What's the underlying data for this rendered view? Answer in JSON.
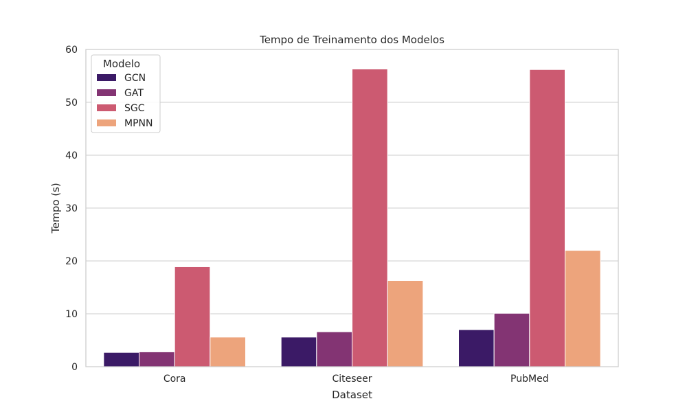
{
  "chart_data": {
    "type": "bar",
    "title": "Tempo de Treinamento dos Modelos",
    "xlabel": "Dataset",
    "ylabel": "Tempo (s)",
    "categories": [
      "Cora",
      "Citeseer",
      "PubMed"
    ],
    "series": [
      {
        "name": "GCN",
        "color": "#3b1a66",
        "values": [
          2.7,
          5.6,
          7.0
        ]
      },
      {
        "name": "GAT",
        "color": "#833473",
        "values": [
          2.8,
          6.6,
          10.1
        ]
      },
      {
        "name": "SGC",
        "color": "#cc5a71",
        "values": [
          18.9,
          56.3,
          56.2
        ]
      },
      {
        "name": "MPNN",
        "color": "#eda47c",
        "values": [
          5.6,
          16.3,
          22.0
        ]
      }
    ],
    "ylim": [
      0,
      60
    ],
    "yticks": [
      "0",
      "10",
      "20",
      "30",
      "40",
      "50",
      "60"
    ],
    "grid": true,
    "legend": {
      "title": "Modelo",
      "placement": "top-left"
    }
  }
}
